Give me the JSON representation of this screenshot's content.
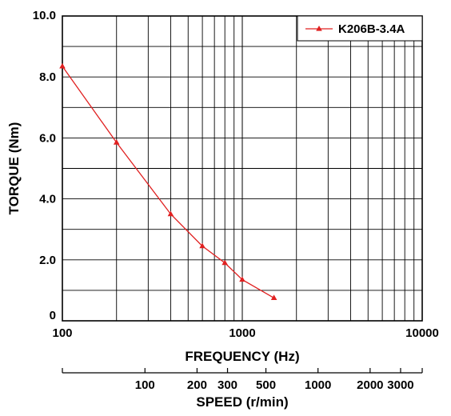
{
  "chart_data": {
    "type": "line",
    "xscale": "log",
    "xlim": [
      100,
      10000
    ],
    "ylim": [
      0,
      10
    ],
    "grid": true,
    "legend_position": "top-right",
    "xlabel": "FREQUENCY (Hz)",
    "ylabel": "TORQUE (Nm)",
    "x_ticks": [
      {
        "value": 100,
        "label": "100"
      },
      {
        "value": 1000,
        "label": "1000"
      },
      {
        "value": 10000,
        "label": "10000"
      }
    ],
    "y_ticks": [
      {
        "value": 0,
        "label": "0"
      },
      {
        "value": 2,
        "label": "2.0"
      },
      {
        "value": 4,
        "label": "4.0"
      },
      {
        "value": 6,
        "label": "6.0"
      },
      {
        "value": 8,
        "label": "8.0"
      },
      {
        "value": 10,
        "label": "10.0"
      }
    ],
    "secondary_x_axis": {
      "label": "SPEED (r/min)",
      "ticks": [
        {
          "label": "100",
          "speed": 100
        },
        {
          "label": "200",
          "speed": 200
        },
        {
          "label": "300",
          "speed": 300
        },
        {
          "label": "500",
          "speed": 500
        },
        {
          "label": "1000",
          "speed": 1000
        },
        {
          "label": "2000",
          "speed": 2000
        },
        {
          "label": "3000",
          "speed": 3000
        }
      ]
    },
    "series": [
      {
        "name": "K206B-3.4A",
        "color": "#e02020",
        "marker": "triangle",
        "points": [
          {
            "x": 100,
            "y": 8.35
          },
          {
            "x": 200,
            "y": 5.85
          },
          {
            "x": 400,
            "y": 3.5
          },
          {
            "x": 600,
            "y": 2.45
          },
          {
            "x": 800,
            "y": 1.9
          },
          {
            "x": 1000,
            "y": 1.35
          },
          {
            "x": 1500,
            "y": 0.75
          }
        ]
      }
    ]
  }
}
